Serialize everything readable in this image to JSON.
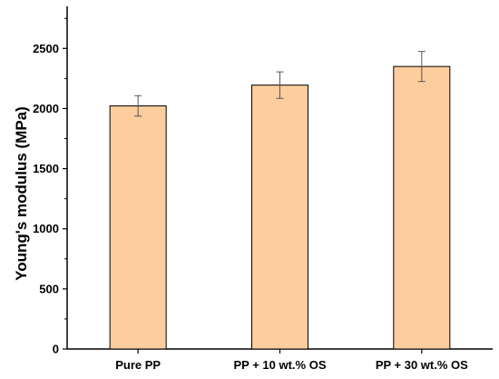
{
  "chart_data": {
    "type": "bar",
    "title": "",
    "xlabel": "",
    "ylabel": "Young's modulus (MPa)",
    "categories": [
      "Pure PP",
      "PP + 10 wt.% OS",
      "PP + 30 wt.% OS"
    ],
    "values": [
      2022,
      2195,
      2350
    ],
    "errors": [
      85,
      110,
      125
    ],
    "ylim": [
      0,
      2850
    ],
    "yticks": [
      0,
      500,
      1000,
      1500,
      2000,
      2500
    ],
    "grid": false,
    "legend": "none",
    "colors": {
      "bar_fill": "#FDCD9D",
      "bar_stroke": "#000000",
      "axis": "#000000"
    }
  }
}
